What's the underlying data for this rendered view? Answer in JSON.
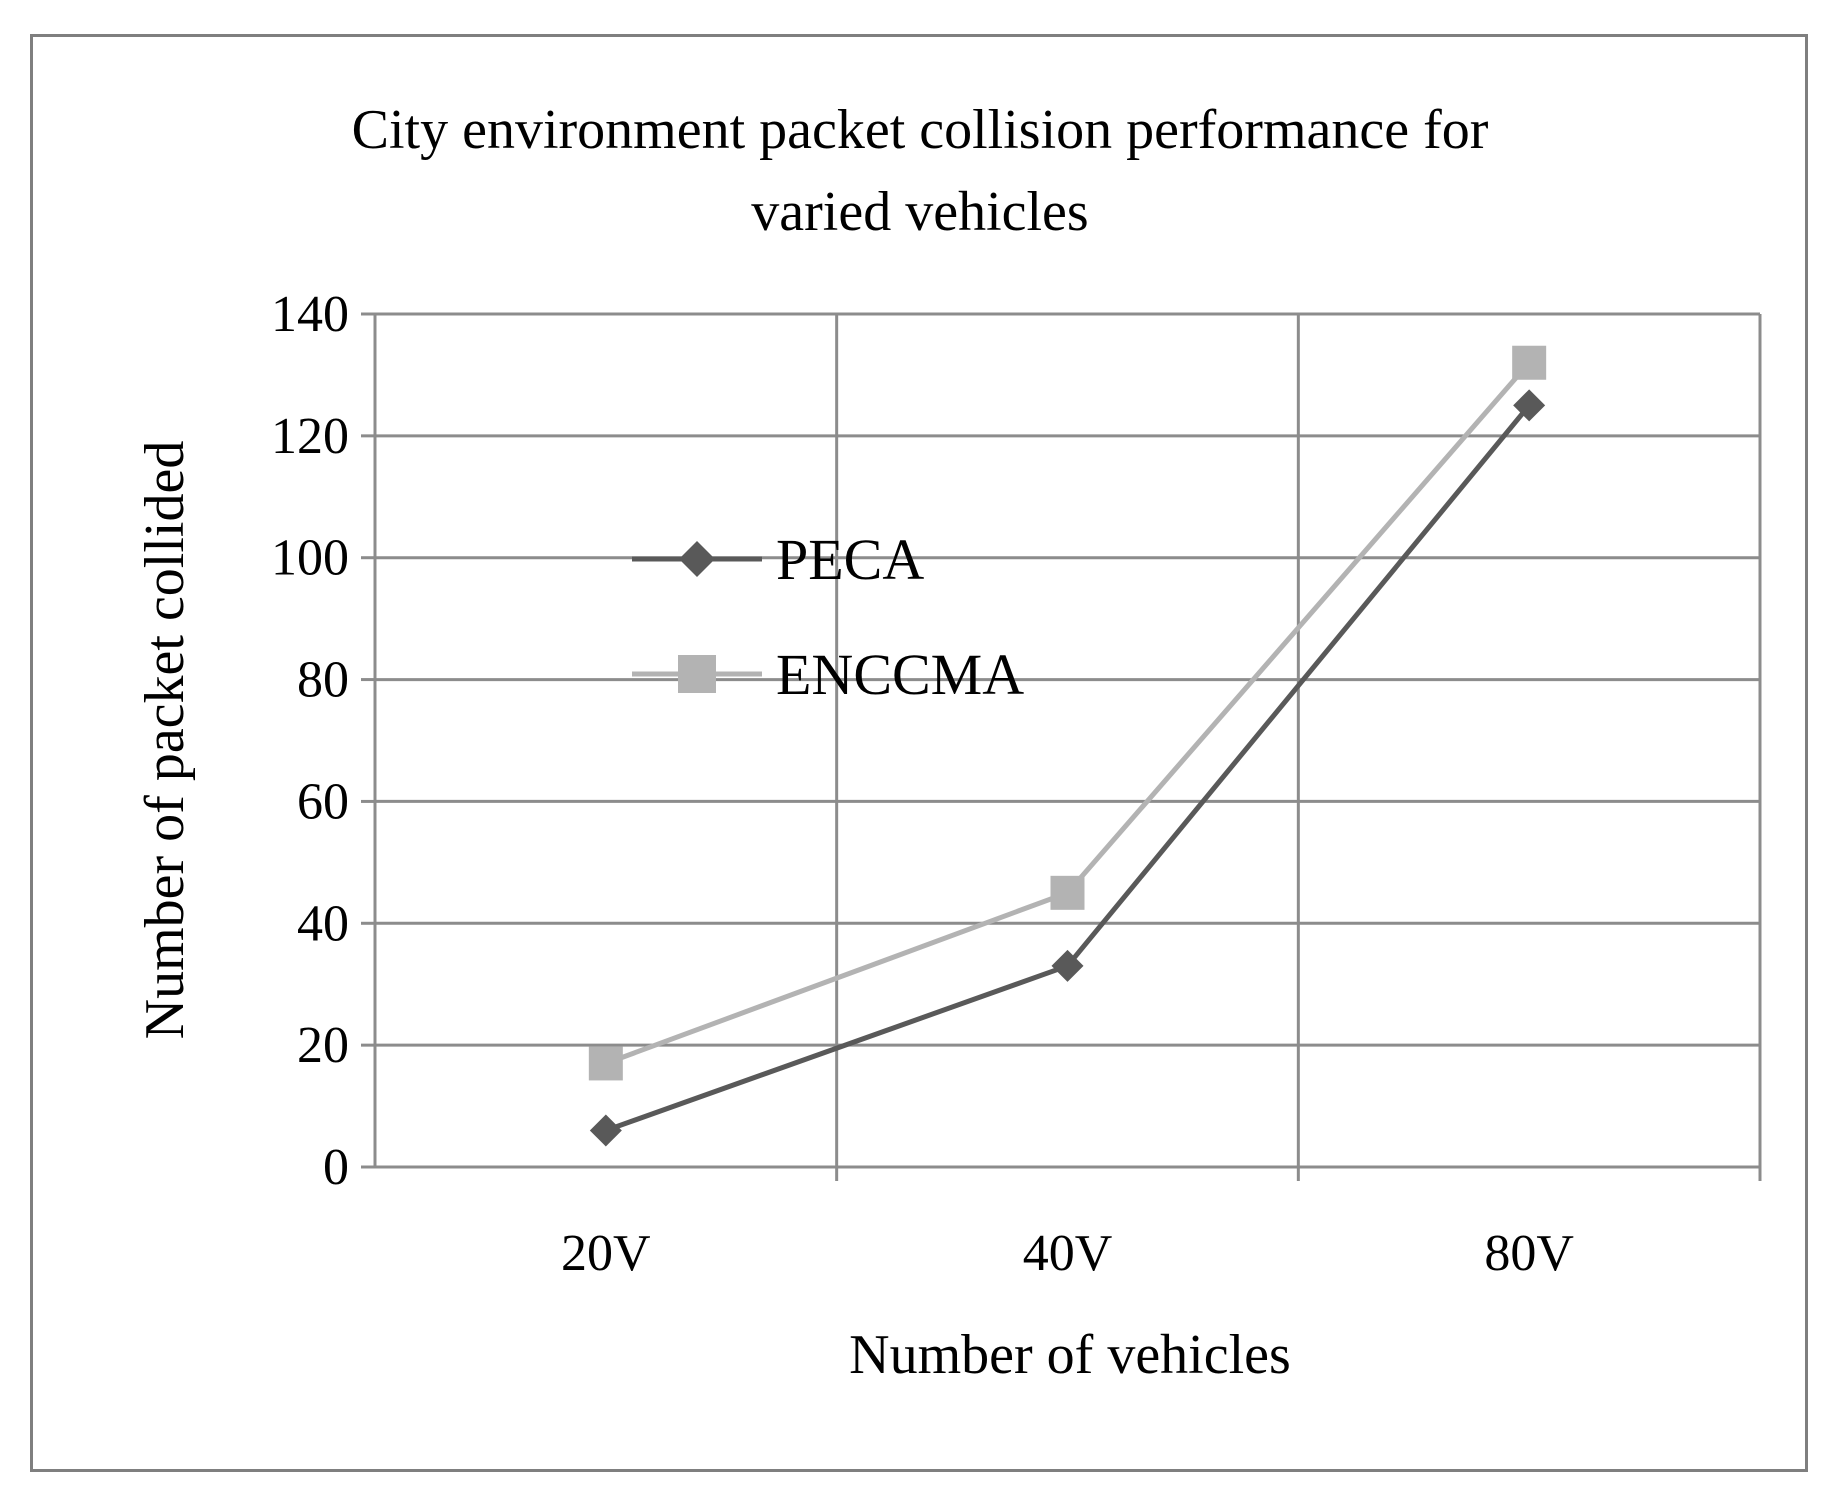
{
  "chart_data": {
    "type": "line",
    "title_lines": [
      "City environment packet collision performance for",
      "varied vehicles"
    ],
    "xlabel": "Number of vehicles",
    "ylabel": "Number of packet collided",
    "categories": [
      "20V",
      "40V",
      "80V"
    ],
    "ylim": [
      0,
      140
    ],
    "yticks": [
      "0",
      "20",
      "40",
      "60",
      "80",
      "100",
      "120",
      "140"
    ],
    "grid": true,
    "legend_position": "inside-left",
    "series": [
      {
        "name": "PECA",
        "values": [
          6,
          33,
          125
        ],
        "color": "#595959",
        "marker": "diamond"
      },
      {
        "name": "ENCCMA",
        "values": [
          17,
          45,
          132
        ],
        "color": "#b3b3b3",
        "marker": "square"
      }
    ]
  },
  "colors": {
    "grid": "#8c8c8c",
    "frame": "#7f7f7f",
    "axis": "#8c8c8c"
  }
}
